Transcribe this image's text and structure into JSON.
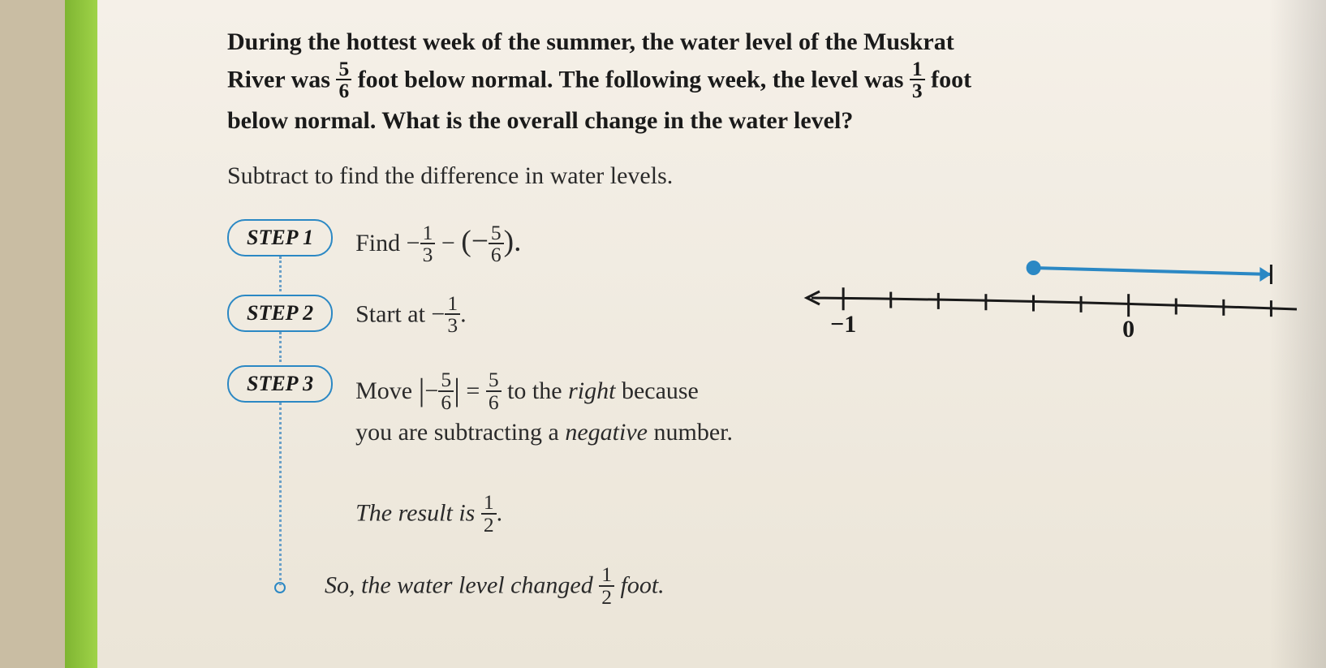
{
  "problem": {
    "line1_a": "During the hottest week of the summer, the water level of the Muskrat",
    "line2_a": "River was ",
    "frac1_num": "5",
    "frac1_den": "6",
    "line2_b": " foot below normal. The following week, the level was ",
    "frac2_num": "1",
    "frac2_den": "3",
    "line2_c": " foot",
    "line3": "below normal. What is the overall change in the water level?"
  },
  "instruction": "Subtract to find the difference in water levels.",
  "steps": {
    "s1": {
      "label": "STEP 1",
      "pre": "Find ",
      "math_minus": "−",
      "f1_num": "1",
      "f1_den": "3",
      "mid": " − ",
      "paren_open": "(−",
      "f2_num": "5",
      "f2_den": "6",
      "paren_close": ").",
      "post": ""
    },
    "s2": {
      "label": "STEP 2",
      "pre": "Start at −",
      "f_num": "1",
      "f_den": "3",
      "post": "."
    },
    "s3": {
      "label": "STEP 3",
      "l1_a": "Move ",
      "abs_open": "|",
      "abs_neg": "−",
      "f1_num": "5",
      "f1_den": "6",
      "abs_close": "|",
      "eq": " = ",
      "f2_num": "5",
      "f2_den": "6",
      "l1_b": " to the ",
      "right_word": "right",
      "l1_c": " because",
      "l2": "you are subtracting a ",
      "neg_word": "negative",
      "l2_b": " number.",
      "result_a": "The result is ",
      "fr_num": "1",
      "fr_den": "2",
      "result_b": "."
    }
  },
  "so": {
    "a": "So, the water level changed ",
    "f_num": "1",
    "f_den": "2",
    "b": " foot."
  },
  "numberline": {
    "x_start": -1.1,
    "x_end": 0.55,
    "ticks_major": [
      -1,
      0
    ],
    "ticks_minor_count": 6,
    "dot_start_x": -0.333,
    "arrow_end_x": 0.5,
    "label_neg1": "−1",
    "label_0": "0",
    "axis_color": "#1a1a1a",
    "highlight_color": "#2b88c4",
    "dot_color": "#2b88c4"
  }
}
